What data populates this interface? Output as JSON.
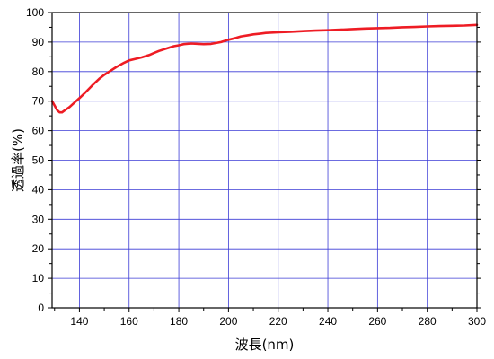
{
  "chart_data": {
    "type": "line",
    "title": "",
    "xlabel": "波長(nm)",
    "ylabel": "透過率(%)",
    "xlim": [
      129,
      300
    ],
    "ylim": [
      0,
      100
    ],
    "x_ticks": [
      140,
      160,
      180,
      200,
      220,
      240,
      260,
      280,
      300
    ],
    "y_ticks": [
      0,
      10,
      20,
      30,
      40,
      50,
      60,
      70,
      80,
      90,
      100
    ],
    "grid": true,
    "legend": "none",
    "colors": {
      "series": "#ee1c24",
      "grid": "#3b3bd6",
      "axis": "#000000"
    },
    "series": [
      {
        "x": [
          129,
          130,
          131,
          132,
          133,
          134,
          136,
          138,
          140,
          142,
          145,
          148,
          150,
          152,
          155,
          158,
          160,
          162,
          165,
          168,
          170,
          172,
          175,
          178,
          180,
          182,
          185,
          188,
          190,
          193,
          195,
          197,
          200,
          203,
          205,
          208,
          210,
          213,
          215,
          220,
          225,
          230,
          235,
          240,
          245,
          250,
          255,
          260,
          265,
          270,
          275,
          280,
          285,
          290,
          295,
          300
        ],
        "y": [
          70,
          68.5,
          67,
          66.2,
          66.2,
          66.8,
          68,
          69.5,
          71,
          72.6,
          75.2,
          77.6,
          78.9,
          80,
          81.6,
          83,
          83.8,
          84.2,
          84.8,
          85.6,
          86.3,
          87,
          87.8,
          88.6,
          88.9,
          89.3,
          89.5,
          89.4,
          89.3,
          89.4,
          89.7,
          90,
          90.8,
          91.4,
          91.9,
          92.3,
          92.6,
          92.9,
          93.1,
          93.3,
          93.5,
          93.7,
          93.9,
          94.0,
          94.2,
          94.4,
          94.6,
          94.7,
          94.8,
          95.0,
          95.1,
          95.3,
          95.4,
          95.5,
          95.6,
          95.8
        ]
      }
    ]
  }
}
